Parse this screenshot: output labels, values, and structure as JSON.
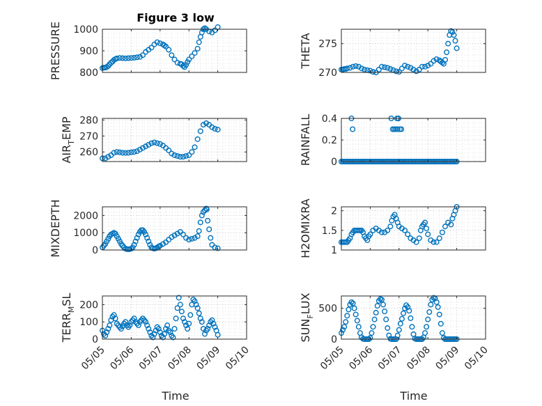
{
  "figure": {
    "title": "Figure 3 low",
    "xlabel": "Time"
  },
  "chart_data": [
    {
      "type": "scatter",
      "name": "pressure",
      "ylabel": "PRESSURE",
      "xlim": [
        "05/05",
        "05/10"
      ],
      "ylim": [
        800,
        1000
      ],
      "yticks": [
        800,
        900,
        1000
      ],
      "xticks": [
        "05/05",
        "05/06",
        "05/07",
        "05/08",
        "05/09",
        "05/10"
      ],
      "grid": true,
      "color": "#0072BD",
      "x": [
        5.0,
        5.05,
        5.1,
        5.15,
        5.2,
        5.25,
        5.3,
        5.35,
        5.4,
        5.45,
        5.5,
        5.6,
        5.7,
        5.8,
        5.9,
        6.0,
        6.1,
        6.2,
        6.3,
        6.4,
        6.5,
        6.6,
        6.7,
        6.8,
        6.9,
        7.0,
        7.1,
        7.15,
        7.2,
        7.3,
        7.4,
        7.5,
        7.6,
        7.7,
        7.75,
        7.8,
        7.85,
        7.9,
        7.95,
        8.0,
        8.1,
        8.2,
        8.3,
        8.35,
        8.4,
        8.45,
        8.5,
        8.55,
        8.6,
        8.7,
        8.8,
        8.9,
        9.0
      ],
      "y": [
        820,
        822,
        822,
        825,
        830,
        838,
        845,
        850,
        858,
        862,
        865,
        867,
        866,
        865,
        866,
        867,
        868,
        870,
        872,
        880,
        895,
        905,
        915,
        930,
        940,
        935,
        930,
        925,
        920,
        905,
        880,
        860,
        845,
        840,
        838,
        830,
        825,
        835,
        848,
        860,
        875,
        890,
        910,
        940,
        965,
        985,
        1000,
        1005,
        1000,
        990,
        985,
        995,
        1010
      ]
    },
    {
      "type": "scatter",
      "name": "theta",
      "ylabel": "THETA",
      "xlim": [
        "05/05",
        "05/10"
      ],
      "ylim": [
        270,
        277.5
      ],
      "yticks": [
        270,
        275
      ],
      "xticks": [
        "05/05",
        "05/06",
        "05/07",
        "05/08",
        "05/09",
        "05/10"
      ],
      "grid": true,
      "color": "#0072BD",
      "x": [
        5.0,
        5.05,
        5.1,
        5.15,
        5.2,
        5.3,
        5.4,
        5.5,
        5.6,
        5.7,
        5.8,
        5.9,
        6.0,
        6.1,
        6.2,
        6.3,
        6.4,
        6.5,
        6.6,
        6.7,
        6.8,
        6.9,
        7.0,
        7.1,
        7.2,
        7.3,
        7.4,
        7.5,
        7.6,
        7.7,
        7.8,
        7.9,
        8.0,
        8.1,
        8.2,
        8.3,
        8.4,
        8.45,
        8.5,
        8.55,
        8.6,
        8.65,
        8.7,
        8.75,
        8.8,
        8.85,
        8.9,
        8.95,
        9.0
      ],
      "y": [
        270.5,
        270.5,
        270.6,
        270.6,
        270.7,
        270.8,
        271.0,
        271.1,
        271.0,
        270.7,
        270.5,
        270.4,
        270.3,
        270.1,
        270.0,
        270.5,
        271.0,
        270.9,
        270.8,
        270.6,
        270.4,
        270.2,
        270.1,
        270.7,
        271.2,
        271.0,
        270.8,
        270.5,
        270.2,
        270.5,
        271.0,
        271.0,
        271.2,
        271.5,
        272.0,
        272.3,
        272.1,
        271.9,
        271.7,
        271.5,
        272.2,
        273.5,
        275.0,
        276.5,
        277.2,
        277.0,
        276.5,
        275.5,
        274.2
      ]
    },
    {
      "type": "scatter",
      "name": "air-temp",
      "ylabel": "AIR_TEMP",
      "xlim": [
        "05/05",
        "05/10"
      ],
      "ylim": [
        254,
        281
      ],
      "yticks": [
        260,
        270,
        280
      ],
      "xticks": [
        "05/05",
        "05/06",
        "05/07",
        "05/08",
        "05/09",
        "05/10"
      ],
      "grid": true,
      "color": "#0072BD",
      "x": [
        5.0,
        5.1,
        5.2,
        5.3,
        5.4,
        5.5,
        5.6,
        5.7,
        5.8,
        5.9,
        6.0,
        6.1,
        6.2,
        6.3,
        6.4,
        6.5,
        6.6,
        6.7,
        6.8,
        6.9,
        7.0,
        7.1,
        7.2,
        7.3,
        7.4,
        7.5,
        7.6,
        7.7,
        7.8,
        7.9,
        8.0,
        8.1,
        8.2,
        8.3,
        8.4,
        8.5,
        8.6,
        8.7,
        8.8,
        8.9,
        9.0
      ],
      "y": [
        256,
        256,
        257,
        258,
        259.5,
        260,
        259.8,
        259.5,
        259.4,
        259.5,
        259.8,
        260,
        260.5,
        261.5,
        262.5,
        263.5,
        264.5,
        265.5,
        266,
        265.5,
        265,
        264,
        262.5,
        261,
        259,
        258,
        257.5,
        257,
        257,
        257.5,
        258,
        260,
        263,
        268,
        273,
        277,
        278,
        277,
        275.5,
        274.5,
        274
      ]
    },
    {
      "type": "scatter",
      "name": "rainfall",
      "ylabel": "RAINFALL",
      "xlim": [
        "05/05",
        "05/10"
      ],
      "ylim": [
        0,
        0.4
      ],
      "yticks": [
        0,
        0.2,
        0.4
      ],
      "xticks": [
        "05/05",
        "05/06",
        "05/07",
        "05/08",
        "05/09",
        "05/10"
      ],
      "grid": true,
      "color": "#0072BD",
      "x": [
        5.0,
        5.05,
        5.1,
        5.15,
        5.2,
        5.25,
        5.3,
        5.35,
        5.4,
        5.45,
        5.5,
        5.55,
        5.6,
        5.65,
        5.7,
        5.75,
        5.8,
        5.85,
        5.9,
        5.95,
        6.0,
        6.05,
        6.1,
        6.15,
        6.2,
        6.25,
        6.3,
        6.35,
        6.4,
        6.45,
        6.5,
        6.55,
        6.6,
        6.65,
        6.7,
        6.75,
        6.8,
        6.85,
        6.9,
        6.95,
        7.0,
        7.05,
        7.1,
        7.15,
        7.2,
        7.25,
        7.3,
        7.35,
        7.4,
        7.45,
        7.5,
        7.55,
        7.6,
        7.65,
        7.7,
        7.75,
        7.8,
        7.85,
        7.9,
        7.95,
        8.0,
        8.05,
        8.1,
        8.15,
        8.2,
        8.25,
        8.3,
        8.35,
        8.4,
        8.45,
        8.5,
        8.55,
        8.6,
        8.65,
        8.7,
        8.75,
        8.8,
        8.85,
        8.9,
        8.95,
        9.0,
        5.35,
        5.39,
        6.73,
        6.78,
        6.88,
        6.93,
        6.98,
        7.08,
        6.83,
        6.95,
        7.03
      ],
      "y": [
        0,
        0,
        0,
        0,
        0,
        0,
        0,
        0,
        0,
        0,
        0,
        0,
        0,
        0,
        0,
        0,
        0,
        0,
        0,
        0,
        0,
        0,
        0,
        0,
        0,
        0,
        0,
        0,
        0,
        0,
        0,
        0,
        0,
        0,
        0,
        0,
        0,
        0,
        0,
        0,
        0,
        0,
        0,
        0,
        0,
        0,
        0,
        0,
        0,
        0,
        0,
        0,
        0,
        0,
        0,
        0,
        0,
        0,
        0,
        0,
        0,
        0,
        0,
        0,
        0,
        0,
        0,
        0,
        0,
        0,
        0,
        0,
        0,
        0,
        0,
        0,
        0,
        0,
        0,
        0,
        0,
        0.4,
        0.3,
        0.4,
        0.3,
        0.3,
        0.4,
        0.4,
        0.3,
        0.3,
        0.3,
        0.3
      ]
    },
    {
      "type": "scatter",
      "name": "mixdepth",
      "ylabel": "MIXDEPTH",
      "xlim": [
        "05/05",
        "05/10"
      ],
      "ylim": [
        0,
        2500
      ],
      "yticks": [
        0,
        1000,
        2000
      ],
      "xticks": [
        "05/05",
        "05/06",
        "05/07",
        "05/08",
        "05/09",
        "05/10"
      ],
      "grid": true,
      "color": "#0072BD",
      "x": [
        5.0,
        5.05,
        5.1,
        5.15,
        5.2,
        5.25,
        5.3,
        5.35,
        5.4,
        5.45,
        5.5,
        5.55,
        5.6,
        5.65,
        5.7,
        5.75,
        5.8,
        5.85,
        5.9,
        5.95,
        6.0,
        6.05,
        6.1,
        6.15,
        6.2,
        6.25,
        6.3,
        6.35,
        6.4,
        6.45,
        6.5,
        6.55,
        6.6,
        6.65,
        6.7,
        6.75,
        6.8,
        6.85,
        6.9,
        6.95,
        7.0,
        7.1,
        7.2,
        7.3,
        7.4,
        7.5,
        7.6,
        7.7,
        7.8,
        7.9,
        8.0,
        8.1,
        8.2,
        8.3,
        8.35,
        8.4,
        8.45,
        8.5,
        8.55,
        8.6,
        8.62,
        8.65,
        8.7,
        8.75,
        8.8,
        8.9,
        9.0
      ],
      "y": [
        150,
        250,
        350,
        500,
        650,
        800,
        900,
        950,
        1000,
        950,
        800,
        650,
        500,
        350,
        250,
        150,
        80,
        50,
        40,
        50,
        80,
        150,
        300,
        500,
        700,
        900,
        1050,
        1150,
        1150,
        1050,
        900,
        700,
        500,
        300,
        150,
        100,
        80,
        100,
        150,
        200,
        250,
        350,
        450,
        600,
        750,
        850,
        950,
        1050,
        900,
        700,
        600,
        650,
        700,
        800,
        1100,
        1600,
        2000,
        2200,
        2300,
        2400,
        2350,
        1700,
        1200,
        700,
        300,
        150,
        100
      ]
    },
    {
      "type": "scatter",
      "name": "h2o-mixing-ratio",
      "ylabel": "H2OMIXRA",
      "xlim": [
        "05/05",
        "05/10"
      ],
      "ylim": [
        1,
        2.1
      ],
      "yticks": [
        1,
        1.5,
        2
      ],
      "xticks": [
        "05/05",
        "05/06",
        "05/07",
        "05/08",
        "05/09",
        "05/10"
      ],
      "grid": true,
      "color": "#0072BD",
      "x": [
        5.0,
        5.05,
        5.1,
        5.15,
        5.2,
        5.25,
        5.3,
        5.35,
        5.4,
        5.45,
        5.5,
        5.55,
        5.6,
        5.65,
        5.7,
        5.75,
        5.8,
        5.85,
        5.9,
        5.95,
        6.0,
        6.1,
        6.2,
        6.3,
        6.4,
        6.5,
        6.6,
        6.7,
        6.75,
        6.8,
        6.85,
        6.9,
        6.95,
        7.0,
        7.1,
        7.2,
        7.3,
        7.4,
        7.5,
        7.6,
        7.7,
        7.75,
        7.8,
        7.85,
        7.9,
        7.95,
        8.0,
        8.1,
        8.2,
        8.3,
        8.4,
        8.5,
        8.6,
        8.7,
        8.8,
        8.85,
        8.9,
        8.95,
        9.0
      ],
      "y": [
        1.2,
        1.2,
        1.2,
        1.2,
        1.2,
        1.25,
        1.3,
        1.4,
        1.45,
        1.5,
        1.5,
        1.5,
        1.5,
        1.5,
        1.5,
        1.45,
        1.35,
        1.3,
        1.25,
        1.35,
        1.4,
        1.5,
        1.55,
        1.5,
        1.45,
        1.45,
        1.5,
        1.6,
        1.75,
        1.85,
        1.9,
        1.8,
        1.7,
        1.6,
        1.55,
        1.5,
        1.4,
        1.3,
        1.25,
        1.2,
        1.3,
        1.5,
        1.6,
        1.65,
        1.7,
        1.55,
        1.4,
        1.25,
        1.2,
        1.2,
        1.3,
        1.45,
        1.6,
        1.7,
        1.65,
        1.8,
        1.9,
        2.0,
        2.1
      ]
    },
    {
      "type": "scatter",
      "name": "terrain-msl",
      "ylabel": "TERR_MSL",
      "xlim": [
        "05/05",
        "05/10"
      ],
      "ylim": [
        0,
        250
      ],
      "yticks": [
        0,
        100,
        200
      ],
      "xticks": [
        "05/05",
        "05/06",
        "05/07",
        "05/08",
        "05/09",
        "05/10"
      ],
      "grid": true,
      "color": "#0072BD",
      "x": [
        5.0,
        5.05,
        5.1,
        5.15,
        5.2,
        5.25,
        5.3,
        5.35,
        5.4,
        5.45,
        5.5,
        5.55,
        5.6,
        5.65,
        5.7,
        5.75,
        5.8,
        5.85,
        5.9,
        5.95,
        6.0,
        6.05,
        6.1,
        6.15,
        6.2,
        6.25,
        6.3,
        6.35,
        6.4,
        6.45,
        6.5,
        6.55,
        6.6,
        6.65,
        6.7,
        6.75,
        6.8,
        6.85,
        6.9,
        6.95,
        7.0,
        7.05,
        7.1,
        7.15,
        7.2,
        7.25,
        7.3,
        7.35,
        7.4,
        7.45,
        7.5,
        7.55,
        7.6,
        7.65,
        7.7,
        7.75,
        7.8,
        7.85,
        7.9,
        7.95,
        8.0,
        8.05,
        8.1,
        8.15,
        8.2,
        8.25,
        8.3,
        8.35,
        8.4,
        8.45,
        8.5,
        8.55,
        8.6,
        8.65,
        8.7,
        8.75,
        8.8,
        8.85,
        8.9,
        8.95,
        9.0
      ],
      "y": [
        50,
        30,
        20,
        40,
        60,
        80,
        110,
        130,
        140,
        120,
        90,
        80,
        70,
        60,
        75,
        90,
        100,
        80,
        70,
        80,
        100,
        110,
        120,
        100,
        90,
        80,
        100,
        110,
        120,
        110,
        100,
        80,
        60,
        40,
        20,
        10,
        30,
        50,
        70,
        60,
        40,
        20,
        10,
        30,
        60,
        80,
        50,
        40,
        20,
        10,
        60,
        120,
        180,
        240,
        200,
        160,
        120,
        100,
        80,
        60,
        90,
        140,
        200,
        230,
        220,
        200,
        180,
        150,
        120,
        100,
        60,
        30,
        50,
        60,
        80,
        100,
        110,
        90,
        70,
        50,
        25
      ]
    },
    {
      "type": "scatter",
      "name": "sun-flux",
      "ylabel": "SUN_FLUX",
      "xlim": [
        "05/05",
        "05/10"
      ],
      "ylim": [
        0,
        700
      ],
      "yticks": [
        0,
        500
      ],
      "xticks": [
        "05/05",
        "05/06",
        "05/07",
        "05/08",
        "05/09",
        "05/10"
      ],
      "grid": true,
      "color": "#0072BD",
      "x": [
        5.0,
        5.05,
        5.1,
        5.15,
        5.2,
        5.25,
        5.3,
        5.35,
        5.4,
        5.45,
        5.5,
        5.55,
        5.6,
        5.65,
        5.7,
        5.75,
        5.8,
        5.85,
        5.9,
        5.95,
        6.0,
        6.05,
        6.1,
        6.15,
        6.2,
        6.25,
        6.3,
        6.35,
        6.4,
        6.45,
        6.5,
        6.55,
        6.6,
        6.65,
        6.7,
        6.75,
        6.8,
        6.85,
        6.9,
        6.95,
        7.0,
        7.05,
        7.1,
        7.15,
        7.2,
        7.25,
        7.3,
        7.35,
        7.4,
        7.45,
        7.5,
        7.55,
        7.6,
        7.65,
        7.7,
        7.75,
        7.8,
        7.85,
        7.9,
        7.95,
        8.0,
        8.05,
        8.1,
        8.15,
        8.2,
        8.25,
        8.3,
        8.35,
        8.4,
        8.45,
        8.5,
        8.55,
        8.6,
        8.65,
        8.7,
        8.75,
        8.8,
        8.85,
        8.9,
        8.95,
        9.0
      ],
      "y": [
        100,
        150,
        200,
        280,
        380,
        480,
        560,
        600,
        580,
        500,
        400,
        300,
        200,
        100,
        30,
        5,
        0,
        0,
        0,
        0,
        20,
        100,
        200,
        320,
        430,
        540,
        620,
        650,
        640,
        560,
        450,
        320,
        180,
        60,
        5,
        0,
        0,
        0,
        0,
        60,
        150,
        250,
        330,
        420,
        500,
        550,
        520,
        460,
        340,
        200,
        80,
        10,
        0,
        0,
        0,
        0,
        0,
        30,
        100,
        200,
        320,
        440,
        560,
        640,
        670,
        660,
        600,
        520,
        400,
        250,
        100,
        20,
        0,
        0,
        0,
        0,
        0,
        0,
        0,
        0,
        0
      ]
    }
  ]
}
